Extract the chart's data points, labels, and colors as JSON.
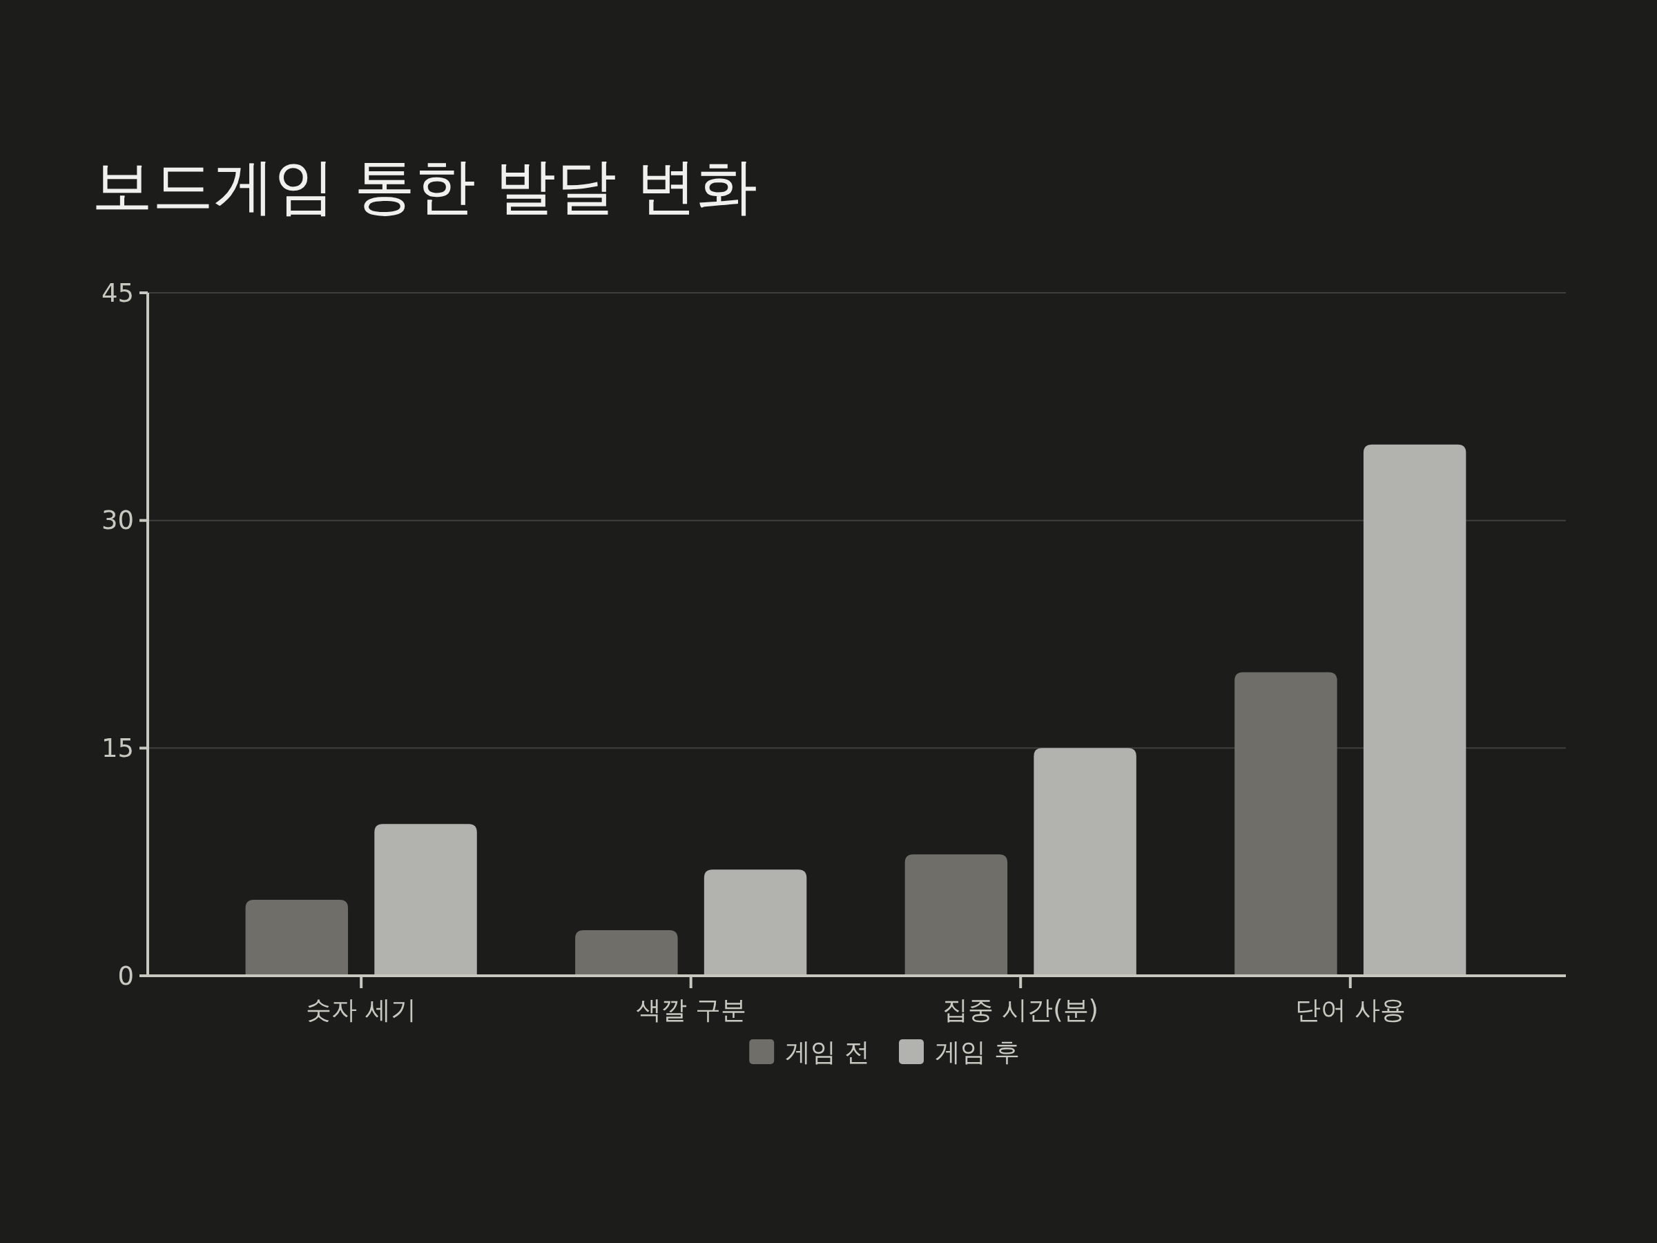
{
  "chart_data": {
    "type": "bar",
    "title": "보드게임 통한 발달 변화",
    "categories": [
      "숫자 세기",
      "색깔 구분",
      "집중 시간(분)",
      "단어 사용"
    ],
    "series": [
      {
        "name": "게임 전",
        "color": "#6f6e69",
        "values": [
          5,
          3,
          8,
          20
        ]
      },
      {
        "name": "게임 후",
        "color": "#b2b3ae",
        "values": [
          10,
          7,
          15,
          35
        ]
      }
    ],
    "ylim": [
      0,
      45
    ],
    "yticks": [
      0,
      15,
      30,
      45
    ],
    "grid": "y",
    "legend": "bottom"
  }
}
